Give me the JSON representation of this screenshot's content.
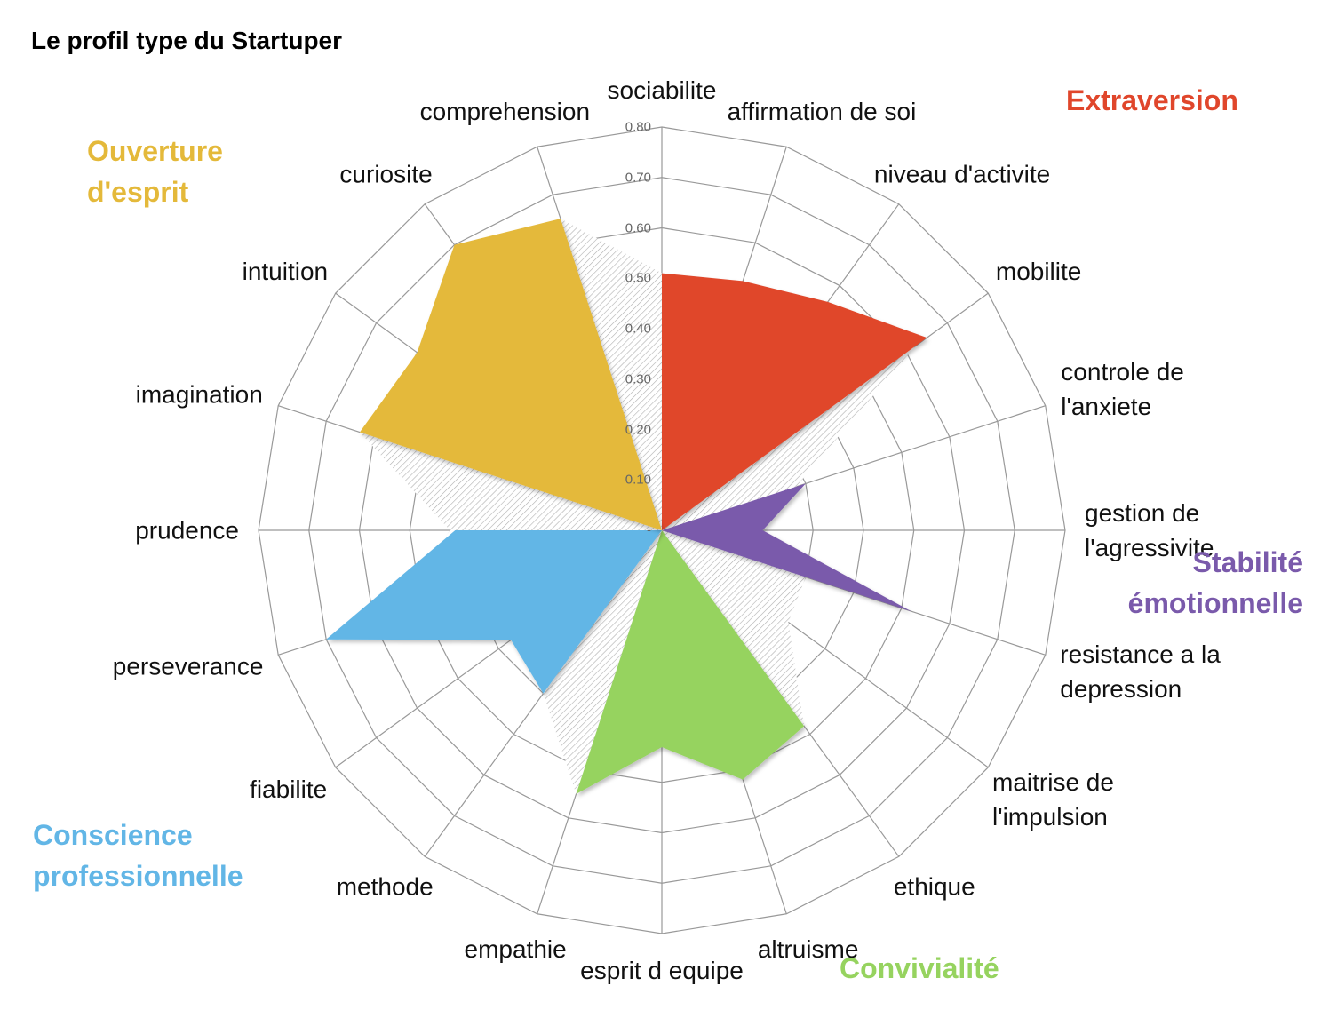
{
  "chart_data": {
    "type": "radar",
    "title": "Le profil type du Startuper",
    "categories": [
      "sociabilite",
      "affirmation de soi",
      "niveau d'activite",
      "mobilite",
      "controle de\nl'anxiete",
      "gestion de\nl'agressivite",
      "resistance a la\ndepression",
      "maitrise de\nl'impulsion",
      "ethique",
      "altruisme",
      "esprit d equipe",
      "empathie",
      "methode",
      "fiabilite",
      "perseverance",
      "prudence",
      "imagination",
      "intuition",
      "curiosite",
      "comprehension"
    ],
    "rlim": [
      0,
      0.8
    ],
    "rticks": [
      {
        "value": 0,
        "label": "-"
      },
      {
        "value": 0.1,
        "label": "0.10"
      },
      {
        "value": 0.2,
        "label": "0.20"
      },
      {
        "value": 0.3,
        "label": "0.30"
      },
      {
        "value": 0.4,
        "label": "0.40"
      },
      {
        "value": 0.5,
        "label": "0.50"
      },
      {
        "value": 0.6,
        "label": "0.60"
      },
      {
        "value": 0.7,
        "label": "0.70"
      },
      {
        "value": 0.8,
        "label": "0.80"
      }
    ],
    "grid": true,
    "series": [
      {
        "color": "#a8a8a8",
        "pattern": "hatch",
        "values": [
          0.51,
          0.5,
          0.5,
          0.62,
          0.28,
          0.2,
          0.3,
          0.31,
          0.48,
          0.45,
          0.43,
          0.55,
          0.4,
          0.35,
          0.6,
          0.42,
          0.63,
          0.55,
          0.65,
          0.65
        ]
      },
      {
        "name": "Extraversion",
        "color": "#e0462b",
        "values": [
          0.51,
          0.52,
          0.56,
          0.65,
          0,
          0,
          0,
          0,
          0,
          0,
          0,
          0,
          0,
          0,
          0,
          0,
          0,
          0,
          0,
          0
        ]
      },
      {
        "name": "Stabilité\némotionnelle",
        "color": "#7a5aab",
        "values": [
          0,
          0,
          0,
          0,
          0.3,
          0.2,
          0.52,
          0,
          0,
          0,
          0,
          0,
          0,
          0,
          0,
          0,
          0,
          0,
          0,
          0
        ]
      },
      {
        "name": "Convivialité",
        "color": "#96d35f",
        "values": [
          0,
          0,
          0,
          0,
          0,
          0,
          0,
          0,
          0.48,
          0.52,
          0.43,
          0.55,
          0,
          0,
          0,
          0,
          0,
          0,
          0,
          0
        ]
      },
      {
        "name": "Conscience\nprofessionnelle",
        "color": "#62b6e6",
        "values": [
          0,
          0,
          0,
          0,
          0,
          0,
          0,
          0,
          0,
          0,
          0,
          0,
          0.4,
          0.37,
          0.7,
          0.41,
          0,
          0,
          0,
          0
        ]
      },
      {
        "name": "Ouverture\nd'esprit",
        "color": "#e4b93a",
        "values": [
          0,
          0,
          0,
          0,
          0,
          0,
          0,
          0,
          0,
          0,
          0,
          0,
          0,
          0,
          0,
          0,
          0.63,
          0.6,
          0.7,
          0.65
        ]
      }
    ]
  }
}
